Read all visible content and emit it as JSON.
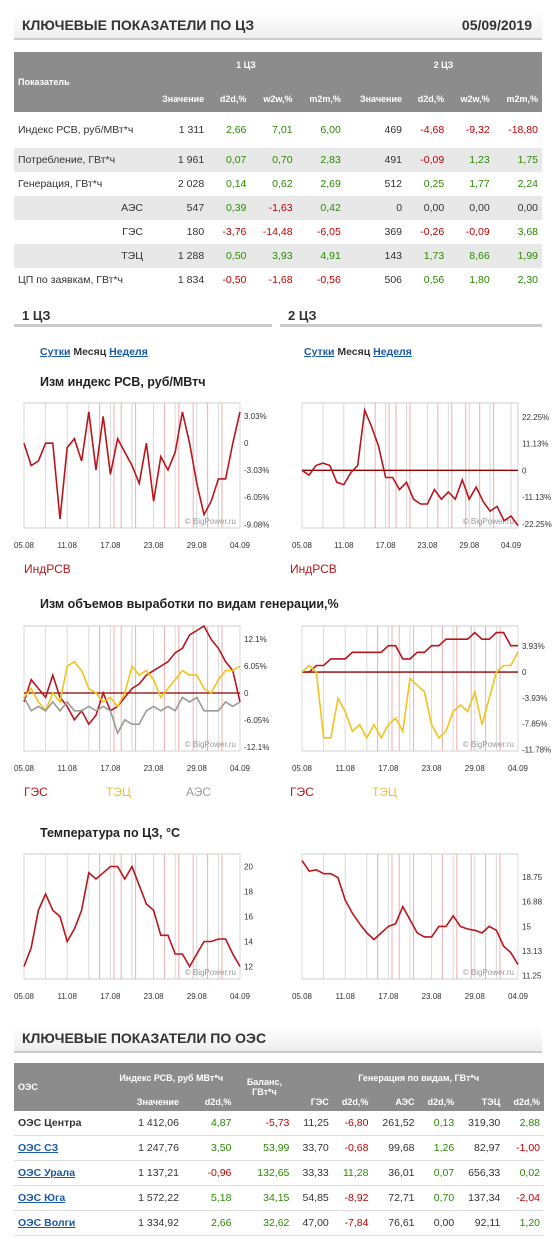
{
  "header1": {
    "title": "КЛЮЧЕВЫЕ ПОКАЗАТЕЛИ ПО ЦЗ",
    "date": "05/09/2019"
  },
  "kp_table": {
    "col_label": "Показатель",
    "group1": "1 ЦЗ",
    "group2": "2 ЦЗ",
    "subcols": [
      "Значение",
      "d2d,%",
      "w2w,%",
      "m2m,%",
      "Значение",
      "d2d,%",
      "w2w,%",
      "m2m,%"
    ],
    "rows": [
      {
        "label": "Индекс РСВ, руб/МВт*ч",
        "indent": false,
        "shade": false,
        "values": [
          "1 311",
          "2,66",
          "7,01",
          "6,00",
          "469",
          "-4,68",
          "-9,32",
          "-18,80"
        ]
      },
      {
        "label": "Потребление, ГВт*ч",
        "indent": false,
        "shade": true,
        "values": [
          "1 961",
          "0,07",
          "0,70",
          "2,83",
          "491",
          "-0,09",
          "1,23",
          "1,75"
        ]
      },
      {
        "label": "Генерация, ГВт*ч",
        "indent": false,
        "shade": false,
        "values": [
          "2 028",
          "0,14",
          "0,62",
          "2,69",
          "512",
          "0,25",
          "1,77",
          "2,24"
        ]
      },
      {
        "label": "АЭС",
        "indent": true,
        "shade": true,
        "values": [
          "547",
          "0,39",
          "-1,63",
          "0,42",
          "0",
          "0,00",
          "0,00",
          "0,00"
        ]
      },
      {
        "label": "ГЭС",
        "indent": true,
        "shade": false,
        "values": [
          "180",
          "-3,76",
          "-14,48",
          "-6,05",
          "369",
          "-0,26",
          "-0,09",
          "3,68"
        ]
      },
      {
        "label": "ТЭЦ",
        "indent": true,
        "shade": true,
        "values": [
          "1 288",
          "0,50",
          "3,93",
          "4,91",
          "143",
          "1,73",
          "8,66",
          "1,99"
        ]
      },
      {
        "label": "ЦП по заявкам, ГВт*ч",
        "indent": false,
        "shade": false,
        "values": [
          "1 834",
          "-0,50",
          "-1,68",
          "-0,56",
          "506",
          "0,56",
          "1,80",
          "2,30"
        ]
      }
    ]
  },
  "sections": {
    "z1": "1 ЦЗ",
    "z2": "2 ЦЗ"
  },
  "tabs": {
    "day": "Сутки",
    "month": "Месяц",
    "week": "Неделя"
  },
  "chart_titles": {
    "rsv": "Изм индекс РСВ, руб/МВтч",
    "gen": "Изм объемов выработки по видам генерации,%",
    "temp": "Температура по ЦЗ, °С"
  },
  "legends": {
    "rsv": "ИндРСВ",
    "ges": "ГЭС",
    "tec": "ТЭЦ",
    "aes": "АЭС"
  },
  "colors": {
    "red": "#b8161c",
    "yellow": "#f0c41b",
    "gray": "#9a9a9a",
    "zero": "#8b0000"
  },
  "watermark": "© BigPower.ru",
  "x_ticks": [
    "05.08",
    "11.08",
    "17.08",
    "23.08",
    "29.08",
    "04.09"
  ],
  "chart_data": [
    {
      "type": "line",
      "id": "rsv1",
      "title": "Изм индекс РСВ, руб/МВтч",
      "yticks": [
        "3.03%",
        "0",
        "-3.03%",
        "-6.05%",
        "-9.08%"
      ],
      "ylim": [
        -9.5,
        4.5
      ],
      "series": [
        {
          "name": "ИндРСВ",
          "color": "red",
          "values": [
            0,
            -2.5,
            -2,
            0,
            0,
            -8.5,
            -0.5,
            0.5,
            -2,
            3.5,
            -3,
            3,
            -3.5,
            0.5,
            -1,
            -2.5,
            -4.5,
            0,
            -6.5,
            -1.5,
            -3,
            -1,
            3.5,
            0,
            -4.5,
            -8,
            -6.5,
            -4,
            -4,
            0,
            3.5
          ]
        }
      ]
    },
    {
      "type": "line",
      "id": "rsv2",
      "title": "Изм индекс РСВ, руб/МВтч",
      "yticks": [
        "22.25%",
        "11.13%",
        "0",
        "-11.13%",
        "-22.25%"
      ],
      "ylim": [
        -24,
        28
      ],
      "series": [
        {
          "name": "ИндРСВ",
          "color": "red",
          "values": [
            0,
            -2,
            2,
            3,
            2,
            -5,
            -6,
            -1,
            2,
            25,
            18,
            10,
            -3,
            -3,
            -8,
            -5,
            -12,
            -14,
            -14,
            -8,
            -12,
            -9,
            -12,
            -4,
            -12,
            -7,
            -13,
            -17,
            -15,
            -21,
            -19,
            -23
          ]
        }
      ]
    },
    {
      "type": "line",
      "id": "gen1",
      "title": "Изм объемов выработки по видам генерации,%",
      "yticks": [
        "12.1%",
        "6.05%",
        "0",
        "-6.05%",
        "-12.1%"
      ],
      "ylim": [
        -13,
        15
      ],
      "series": [
        {
          "name": "ГЭС",
          "color": "red",
          "values": [
            -2,
            3,
            1,
            -1,
            4,
            -1,
            -3,
            -6,
            -4,
            -7,
            -5,
            0,
            -4,
            -3,
            -1,
            1,
            2,
            4,
            5,
            6,
            7,
            9,
            10,
            13,
            14,
            15,
            12,
            10,
            7,
            5,
            -2
          ]
        },
        {
          "name": "ТЭЦ",
          "color": "yellow",
          "values": [
            -1,
            1,
            -2,
            -4,
            0,
            -2,
            6,
            7,
            5,
            1,
            0,
            -2,
            -1,
            -3,
            0,
            6,
            4,
            5,
            3,
            -1,
            1,
            3,
            5,
            4,
            4,
            1,
            0,
            3,
            5,
            5,
            6
          ]
        },
        {
          "name": "АЭС",
          "color": "gray",
          "values": [
            -1,
            -4,
            -3,
            -4,
            -2,
            -4,
            -2,
            -4,
            -4,
            -3,
            -4,
            -3,
            -4,
            -9,
            -6,
            -7,
            -7,
            -4,
            -3,
            -4,
            -3,
            -4,
            -1,
            -2,
            -1,
            -4,
            -4,
            -4,
            -2,
            -3,
            -2
          ]
        }
      ]
    },
    {
      "type": "line",
      "id": "gen2",
      "title": "Изм объемов выработки по видам генерации,%",
      "yticks": [
        "3.93%",
        "0",
        "-3.93%",
        "-7.85%",
        "-11.78%"
      ],
      "ylim": [
        -12,
        7
      ],
      "series": [
        {
          "name": "ГЭС",
          "color": "red",
          "values": [
            0,
            0,
            1,
            1,
            2,
            2,
            2,
            3,
            3,
            3,
            3,
            3,
            4,
            4,
            2,
            2,
            3,
            3,
            4,
            4,
            5,
            5,
            5,
            5,
            6,
            5,
            5,
            6,
            6,
            4,
            4
          ]
        },
        {
          "name": "ТЭЦ",
          "color": "yellow",
          "values": [
            0,
            1,
            0,
            -10,
            -10,
            -4,
            -6,
            -9,
            -8,
            -10,
            -8,
            -10,
            -8,
            -7,
            -9,
            -1,
            -2,
            -3,
            -8,
            -10,
            -9,
            -6,
            -5,
            -6,
            -3,
            -8,
            -4,
            0,
            1,
            1,
            3
          ]
        }
      ]
    },
    {
      "type": "line",
      "id": "temp1",
      "title": "Температура по ЦЗ, °С",
      "yticks": [
        "20",
        "18",
        "16",
        "14",
        "12"
      ],
      "ylim": [
        11,
        21
      ],
      "series": [
        {
          "name": "Температура",
          "color": "red",
          "values": [
            12,
            13.5,
            16.5,
            17.8,
            16.5,
            16,
            14,
            15,
            16.5,
            19.5,
            19,
            19.5,
            20,
            20,
            19,
            20,
            18.5,
            17,
            16.5,
            14.5,
            14.5,
            13,
            13,
            12,
            13,
            14,
            14,
            14.2,
            14.2,
            13,
            12
          ]
        }
      ]
    },
    {
      "type": "line",
      "id": "temp2",
      "title": "Температура по ЦЗ, °С",
      "yticks": [
        "18.75",
        "16.88",
        "15",
        "13.13",
        "11.25"
      ],
      "ylim": [
        11,
        20.5
      ],
      "series": [
        {
          "name": "Температура",
          "color": "red",
          "values": [
            20,
            19.2,
            19.3,
            19,
            19,
            18.7,
            17,
            16,
            15.2,
            14.5,
            14,
            14.5,
            15,
            15.2,
            16.5,
            15.5,
            14.5,
            14.2,
            14.2,
            15,
            15,
            15.8,
            15,
            14.8,
            14.7,
            14.5,
            15,
            14.7,
            13.5,
            13,
            12.1
          ]
        }
      ]
    }
  ],
  "oes_header": {
    "title": "КЛЮЧЕВЫЕ ПОКАЗАТЕЛИ ПО ОЭС"
  },
  "oes_table": {
    "col_label": "ОЭС",
    "g_index": "Индекс РСВ, руб МВт*ч",
    "g_balance": "Баланс, ГВт*ч",
    "g_gen": "Генерация по видам, ГВт*ч",
    "subcols": [
      "Значение",
      "d2d,%",
      "ГЭС",
      "d2d,%",
      "АЭС",
      "d2d,%",
      "ТЭЦ",
      "d2d,%"
    ],
    "rows": [
      {
        "label": "ОЭС Центра",
        "link": false,
        "values": [
          "1 412,06",
          "4,87",
          "-5,73",
          "11,25",
          "-6,80",
          "261,52",
          "0,13",
          "319,30",
          "2,88"
        ]
      },
      {
        "label": "ОЭС СЗ",
        "link": true,
        "values": [
          "1 247,76",
          "3,50",
          "53,99",
          "33,70",
          "-0,68",
          "99,68",
          "1,26",
          "82,97",
          "-1,00"
        ]
      },
      {
        "label": "ОЭС Урала",
        "link": true,
        "values": [
          "1 137,21",
          "-0,96",
          "132,65",
          "33,33",
          "11,28",
          "36,01",
          "0,07",
          "656,33",
          "0,02"
        ]
      },
      {
        "label": "ОЭС Юга",
        "link": true,
        "values": [
          "1 572,22",
          "5,18",
          "34,15",
          "54,85",
          "-8,92",
          "72,71",
          "0,70",
          "137,34",
          "-2,04"
        ]
      },
      {
        "label": "ОЭС Волги",
        "link": true,
        "values": [
          "1 334,92",
          "2,66",
          "32,62",
          "47,00",
          "-7,84",
          "76,61",
          "0,00",
          "92,11",
          "1,20"
        ]
      }
    ]
  }
}
